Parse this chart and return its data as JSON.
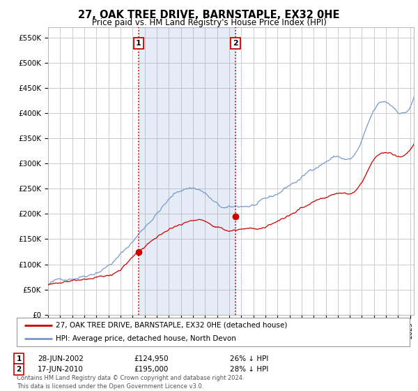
{
  "title": "27, OAK TREE DRIVE, BARNSTAPLE, EX32 0HE",
  "subtitle": "Price paid vs. HM Land Registry's House Price Index (HPI)",
  "bg_color": "#ffffff",
  "plot_bg_color": "#ffffff",
  "grid_color": "#cccccc",
  "hpi_color": "#7799cc",
  "price_color": "#cc0000",
  "shade_color": "#ddeeff",
  "ylim": [
    0,
    570000
  ],
  "yticks": [
    0,
    50000,
    100000,
    150000,
    200000,
    250000,
    300000,
    350000,
    400000,
    450000,
    500000,
    550000
  ],
  "ytick_labels": [
    "£0",
    "£50K",
    "£100K",
    "£150K",
    "£200K",
    "£250K",
    "£300K",
    "£350K",
    "£400K",
    "£450K",
    "£500K",
    "£550K"
  ],
  "purchase1_date": "28-JUN-2002",
  "purchase1_price": 124950,
  "purchase1_label": "26% ↓ HPI",
  "purchase2_date": "17-JUN-2010",
  "purchase2_price": 195000,
  "purchase2_label": "28% ↓ HPI",
  "legend_line1": "27, OAK TREE DRIVE, BARNSTAPLE, EX32 0HE (detached house)",
  "legend_line2": "HPI: Average price, detached house, North Devon",
  "footnote": "Contains HM Land Registry data © Crown copyright and database right 2024.\nThis data is licensed under the Open Government Licence v3.0.",
  "purchase1_x": 2002.5,
  "purchase1_y": 124950,
  "purchase2_x": 2010.5,
  "purchase2_y": 195000,
  "vline1_x": 2002.5,
  "vline2_x": 2010.5,
  "xmin": 1995.0,
  "xmax": 2025.3
}
